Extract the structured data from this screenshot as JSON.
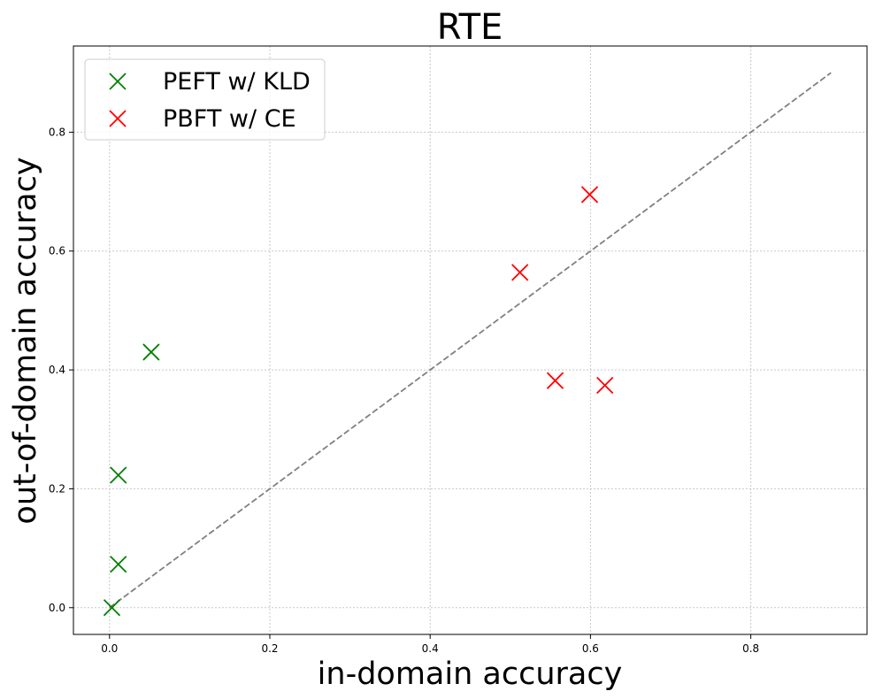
{
  "chart_data": {
    "type": "scatter",
    "title": "RTE",
    "xlabel": "in-domain accuracy",
    "ylabel": "out-of-domain accuracy",
    "xlim": [
      -0.045,
      0.945
    ],
    "ylim": [
      -0.045,
      0.945
    ],
    "xticks": [
      0.0,
      0.2,
      0.4,
      0.6,
      0.8
    ],
    "yticks": [
      0.0,
      0.2,
      0.4,
      0.6,
      0.8
    ],
    "xtick_labels": [
      "0.0",
      "0.2",
      "0.4",
      "0.6",
      "0.8"
    ],
    "ytick_labels": [
      "0.0",
      "0.2",
      "0.4",
      "0.6",
      "0.8"
    ],
    "grid": true,
    "legend_position": "top-left",
    "reference_line": {
      "x": [
        0.0,
        0.9
      ],
      "y": [
        0.0,
        0.9
      ],
      "style": "dashed",
      "color": "#808080"
    },
    "series": [
      {
        "name": "PEFT w/ KLD",
        "marker": "x",
        "color": "#008000",
        "points": [
          {
            "x": 0.003,
            "y": 0.0
          },
          {
            "x": 0.011,
            "y": 0.073
          },
          {
            "x": 0.011,
            "y": 0.223
          },
          {
            "x": 0.052,
            "y": 0.43
          }
        ]
      },
      {
        "name": "PBFT w/ CE",
        "marker": "x",
        "color": "#ff0000",
        "points": [
          {
            "x": 0.512,
            "y": 0.564
          },
          {
            "x": 0.556,
            "y": 0.382
          },
          {
            "x": 0.599,
            "y": 0.695
          },
          {
            "x": 0.618,
            "y": 0.374
          }
        ]
      }
    ]
  }
}
